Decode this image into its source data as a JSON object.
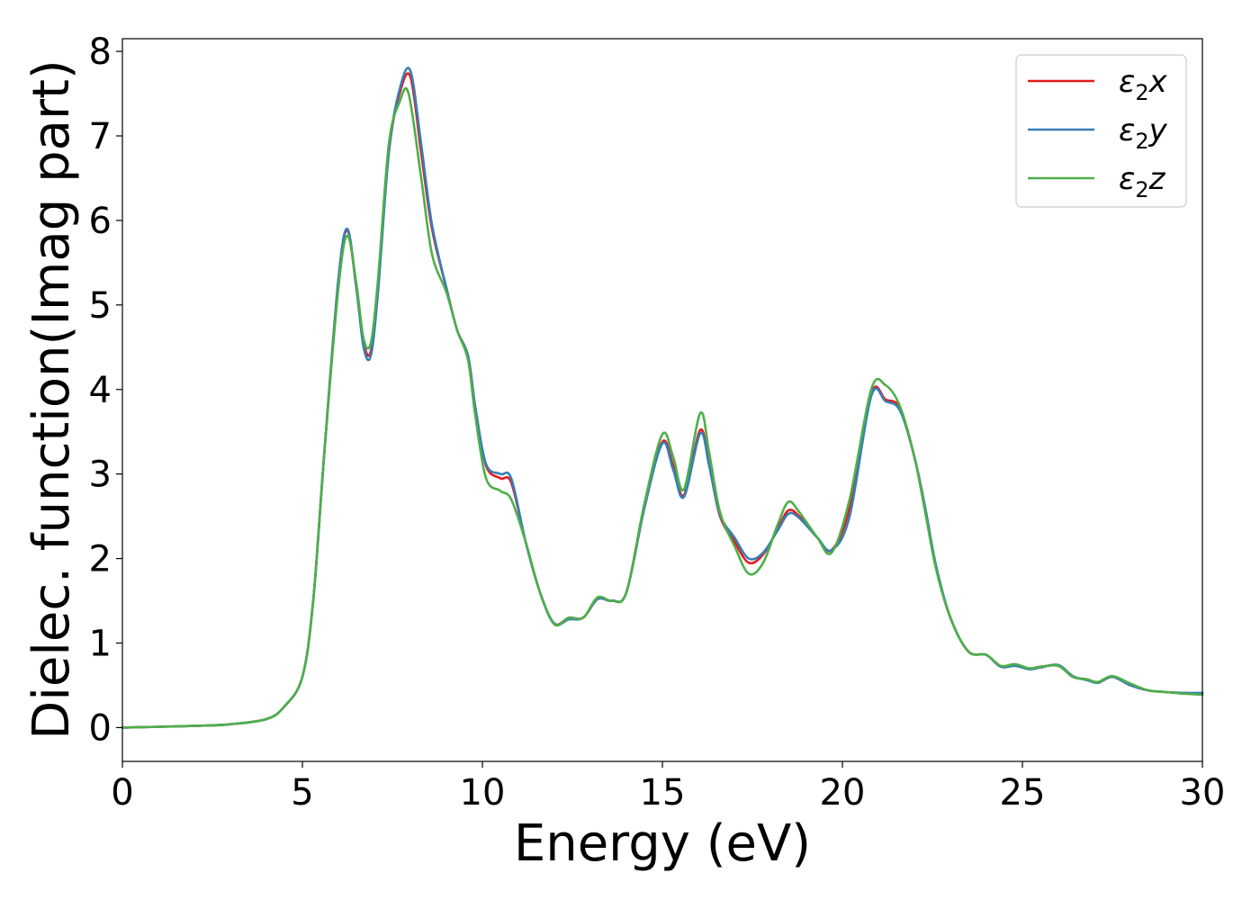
{
  "chart_data": {
    "type": "line",
    "xlabel": "Energy (eV)",
    "ylabel": "Dielec. function(Imag part)",
    "xlim": [
      0,
      30
    ],
    "ylim": [
      -0.4,
      8.15
    ],
    "xticks": [
      0,
      5,
      10,
      15,
      20,
      25,
      30
    ],
    "yticks": [
      0,
      1,
      2,
      3,
      4,
      5,
      6,
      7,
      8
    ],
    "grid": false,
    "legend_position": "top-right",
    "series": [
      {
        "name": "ε₂x",
        "legend": {
          "symbol": "ε",
          "sub": "2",
          "var": "x"
        },
        "color": "#e41a1c",
        "points": [
          [
            0,
            0.0
          ],
          [
            2,
            0.02
          ],
          [
            3,
            0.04
          ],
          [
            4,
            0.1
          ],
          [
            4.5,
            0.25
          ],
          [
            5,
            0.6
          ],
          [
            5.3,
            1.5
          ],
          [
            5.6,
            3.2
          ],
          [
            6.0,
            5.3
          ],
          [
            6.25,
            5.88
          ],
          [
            6.5,
            5.2
          ],
          [
            6.7,
            4.55
          ],
          [
            6.9,
            4.45
          ],
          [
            7.1,
            5.2
          ],
          [
            7.4,
            6.8
          ],
          [
            7.7,
            7.5
          ],
          [
            8.0,
            7.7
          ],
          [
            8.3,
            6.8
          ],
          [
            8.6,
            5.9
          ],
          [
            9.0,
            5.2
          ],
          [
            9.3,
            4.7
          ],
          [
            9.6,
            4.4
          ],
          [
            9.8,
            3.8
          ],
          [
            10.1,
            3.1
          ],
          [
            10.5,
            2.95
          ],
          [
            10.8,
            2.9
          ],
          [
            11.2,
            2.2
          ],
          [
            11.6,
            1.6
          ],
          [
            12.0,
            1.23
          ],
          [
            12.4,
            1.3
          ],
          [
            12.8,
            1.3
          ],
          [
            13.2,
            1.52
          ],
          [
            13.6,
            1.5
          ],
          [
            14.0,
            1.6
          ],
          [
            14.5,
            2.6
          ],
          [
            15.0,
            3.38
          ],
          [
            15.3,
            3.1
          ],
          [
            15.6,
            2.75
          ],
          [
            16.05,
            3.52
          ],
          [
            16.3,
            3.1
          ],
          [
            16.6,
            2.5
          ],
          [
            17.0,
            2.2
          ],
          [
            17.4,
            1.95
          ],
          [
            17.8,
            2.05
          ],
          [
            18.2,
            2.35
          ],
          [
            18.5,
            2.57
          ],
          [
            18.8,
            2.5
          ],
          [
            19.3,
            2.25
          ],
          [
            19.7,
            2.1
          ],
          [
            20.2,
            2.6
          ],
          [
            20.8,
            3.95
          ],
          [
            21.2,
            3.88
          ],
          [
            21.6,
            3.78
          ],
          [
            22.0,
            3.2
          ],
          [
            22.3,
            2.6
          ],
          [
            22.6,
            1.9
          ],
          [
            23.0,
            1.3
          ],
          [
            23.5,
            0.9
          ],
          [
            24.0,
            0.86
          ],
          [
            24.4,
            0.72
          ],
          [
            24.8,
            0.74
          ],
          [
            25.2,
            0.7
          ],
          [
            25.5,
            0.72
          ],
          [
            26.0,
            0.73
          ],
          [
            26.4,
            0.6
          ],
          [
            26.8,
            0.57
          ],
          [
            27.1,
            0.53
          ],
          [
            27.5,
            0.6
          ],
          [
            28.0,
            0.5
          ],
          [
            28.5,
            0.44
          ],
          [
            29.0,
            0.42
          ],
          [
            29.5,
            0.41
          ],
          [
            30.0,
            0.4
          ]
        ]
      },
      {
        "name": "ε₂y",
        "legend": {
          "symbol": "ε",
          "sub": "2",
          "var": "y"
        },
        "color": "#377eb8",
        "points": [
          [
            0,
            0.0
          ],
          [
            2,
            0.02
          ],
          [
            3,
            0.04
          ],
          [
            4,
            0.1
          ],
          [
            4.5,
            0.25
          ],
          [
            5,
            0.6
          ],
          [
            5.3,
            1.5
          ],
          [
            5.6,
            3.2
          ],
          [
            6.0,
            5.3
          ],
          [
            6.25,
            5.9
          ],
          [
            6.5,
            5.2
          ],
          [
            6.7,
            4.5
          ],
          [
            6.9,
            4.4
          ],
          [
            7.1,
            5.15
          ],
          [
            7.4,
            6.8
          ],
          [
            7.7,
            7.55
          ],
          [
            8.0,
            7.77
          ],
          [
            8.3,
            6.9
          ],
          [
            8.6,
            5.95
          ],
          [
            9.0,
            5.2
          ],
          [
            9.3,
            4.7
          ],
          [
            9.6,
            4.4
          ],
          [
            9.8,
            3.8
          ],
          [
            10.1,
            3.12
          ],
          [
            10.5,
            3.0
          ],
          [
            10.8,
            2.95
          ],
          [
            11.2,
            2.2
          ],
          [
            11.6,
            1.6
          ],
          [
            12.0,
            1.23
          ],
          [
            12.4,
            1.28
          ],
          [
            12.8,
            1.3
          ],
          [
            13.2,
            1.52
          ],
          [
            13.6,
            1.5
          ],
          [
            14.0,
            1.6
          ],
          [
            14.5,
            2.6
          ],
          [
            15.0,
            3.36
          ],
          [
            15.3,
            3.05
          ],
          [
            15.6,
            2.73
          ],
          [
            16.05,
            3.48
          ],
          [
            16.3,
            3.1
          ],
          [
            16.6,
            2.52
          ],
          [
            17.0,
            2.25
          ],
          [
            17.4,
            2.0
          ],
          [
            17.8,
            2.07
          ],
          [
            18.2,
            2.33
          ],
          [
            18.5,
            2.53
          ],
          [
            18.8,
            2.48
          ],
          [
            19.3,
            2.25
          ],
          [
            19.7,
            2.1
          ],
          [
            20.2,
            2.5
          ],
          [
            20.8,
            3.92
          ],
          [
            21.2,
            3.86
          ],
          [
            21.6,
            3.75
          ],
          [
            22.0,
            3.2
          ],
          [
            22.3,
            2.6
          ],
          [
            22.6,
            1.92
          ],
          [
            23.0,
            1.3
          ],
          [
            23.5,
            0.9
          ],
          [
            24.0,
            0.86
          ],
          [
            24.4,
            0.72
          ],
          [
            24.8,
            0.73
          ],
          [
            25.2,
            0.69
          ],
          [
            25.5,
            0.71
          ],
          [
            26.0,
            0.74
          ],
          [
            26.4,
            0.61
          ],
          [
            26.8,
            0.56
          ],
          [
            27.1,
            0.53
          ],
          [
            27.5,
            0.6
          ],
          [
            28.0,
            0.5
          ],
          [
            28.5,
            0.44
          ],
          [
            29.0,
            0.42
          ],
          [
            29.5,
            0.41
          ],
          [
            30.0,
            0.41
          ]
        ]
      },
      {
        "name": "ε₂z",
        "legend": {
          "symbol": "ε",
          "sub": "2",
          "var": "z"
        },
        "color": "#4daf4a",
        "points": [
          [
            0,
            0.0
          ],
          [
            2,
            0.02
          ],
          [
            3,
            0.04
          ],
          [
            4,
            0.1
          ],
          [
            4.5,
            0.25
          ],
          [
            5,
            0.6
          ],
          [
            5.3,
            1.5
          ],
          [
            5.6,
            3.2
          ],
          [
            6.0,
            5.2
          ],
          [
            6.25,
            5.82
          ],
          [
            6.5,
            5.25
          ],
          [
            6.7,
            4.6
          ],
          [
            6.9,
            4.55
          ],
          [
            7.1,
            5.3
          ],
          [
            7.4,
            6.9
          ],
          [
            7.7,
            7.4
          ],
          [
            7.95,
            7.5
          ],
          [
            8.3,
            6.5
          ],
          [
            8.6,
            5.6
          ],
          [
            9.0,
            5.15
          ],
          [
            9.3,
            4.7
          ],
          [
            9.6,
            4.35
          ],
          [
            9.8,
            3.7
          ],
          [
            10.1,
            2.95
          ],
          [
            10.5,
            2.8
          ],
          [
            10.8,
            2.7
          ],
          [
            11.2,
            2.2
          ],
          [
            11.6,
            1.6
          ],
          [
            12.0,
            1.22
          ],
          [
            12.4,
            1.3
          ],
          [
            12.8,
            1.3
          ],
          [
            13.2,
            1.54
          ],
          [
            13.6,
            1.5
          ],
          [
            14.0,
            1.6
          ],
          [
            14.5,
            2.65
          ],
          [
            15.0,
            3.47
          ],
          [
            15.3,
            3.2
          ],
          [
            15.6,
            2.82
          ],
          [
            16.05,
            3.72
          ],
          [
            16.3,
            3.25
          ],
          [
            16.6,
            2.55
          ],
          [
            17.0,
            2.15
          ],
          [
            17.4,
            1.82
          ],
          [
            17.8,
            1.95
          ],
          [
            18.2,
            2.4
          ],
          [
            18.5,
            2.67
          ],
          [
            18.8,
            2.55
          ],
          [
            19.3,
            2.25
          ],
          [
            19.7,
            2.07
          ],
          [
            20.2,
            2.7
          ],
          [
            20.8,
            4.0
          ],
          [
            21.2,
            4.05
          ],
          [
            21.6,
            3.8
          ],
          [
            22.0,
            3.2
          ],
          [
            22.3,
            2.55
          ],
          [
            22.6,
            1.88
          ],
          [
            23.0,
            1.3
          ],
          [
            23.5,
            0.9
          ],
          [
            24.0,
            0.86
          ],
          [
            24.4,
            0.73
          ],
          [
            24.8,
            0.75
          ],
          [
            25.2,
            0.7
          ],
          [
            25.5,
            0.72
          ],
          [
            26.0,
            0.73
          ],
          [
            26.4,
            0.6
          ],
          [
            26.8,
            0.57
          ],
          [
            27.1,
            0.54
          ],
          [
            27.5,
            0.61
          ],
          [
            28.0,
            0.52
          ],
          [
            28.5,
            0.44
          ],
          [
            29.0,
            0.42
          ],
          [
            29.5,
            0.4
          ],
          [
            30.0,
            0.39
          ]
        ]
      }
    ]
  }
}
